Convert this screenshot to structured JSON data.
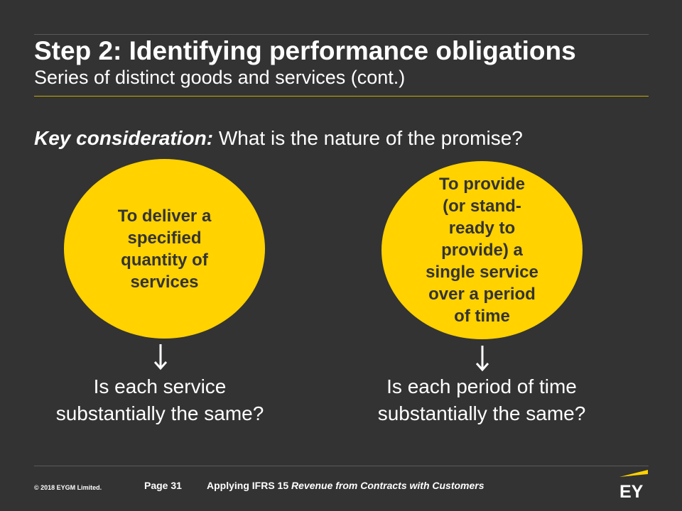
{
  "slide": {
    "title": "Step 2: Identifying performance obligations",
    "subtitle": "Series of distinct goods and services (cont.)",
    "key_label": "Key consideration:",
    "key_text": " What is the nature of the promise?"
  },
  "left": {
    "circle_text": "To deliver a\nspecified\nquantity of\nservices",
    "question": "Is each service\nsubstantially the same?"
  },
  "right": {
    "circle_text": "To provide\n(or stand-\nready to\nprovide) a\nsingle service\nover a period\nof time",
    "question": "Is each period of time\nsubstantially the same?"
  },
  "footer": {
    "copyright": "© 2018 EYGM Limited.",
    "page": "Page 31",
    "doc_prefix": "Applying IFRS 15 ",
    "doc_italic": "Revenue from Contracts with Customers"
  },
  "logo": {
    "text": "EY"
  },
  "colors": {
    "background": "#333333",
    "accent": "#ffd200",
    "text": "#ffffff"
  }
}
